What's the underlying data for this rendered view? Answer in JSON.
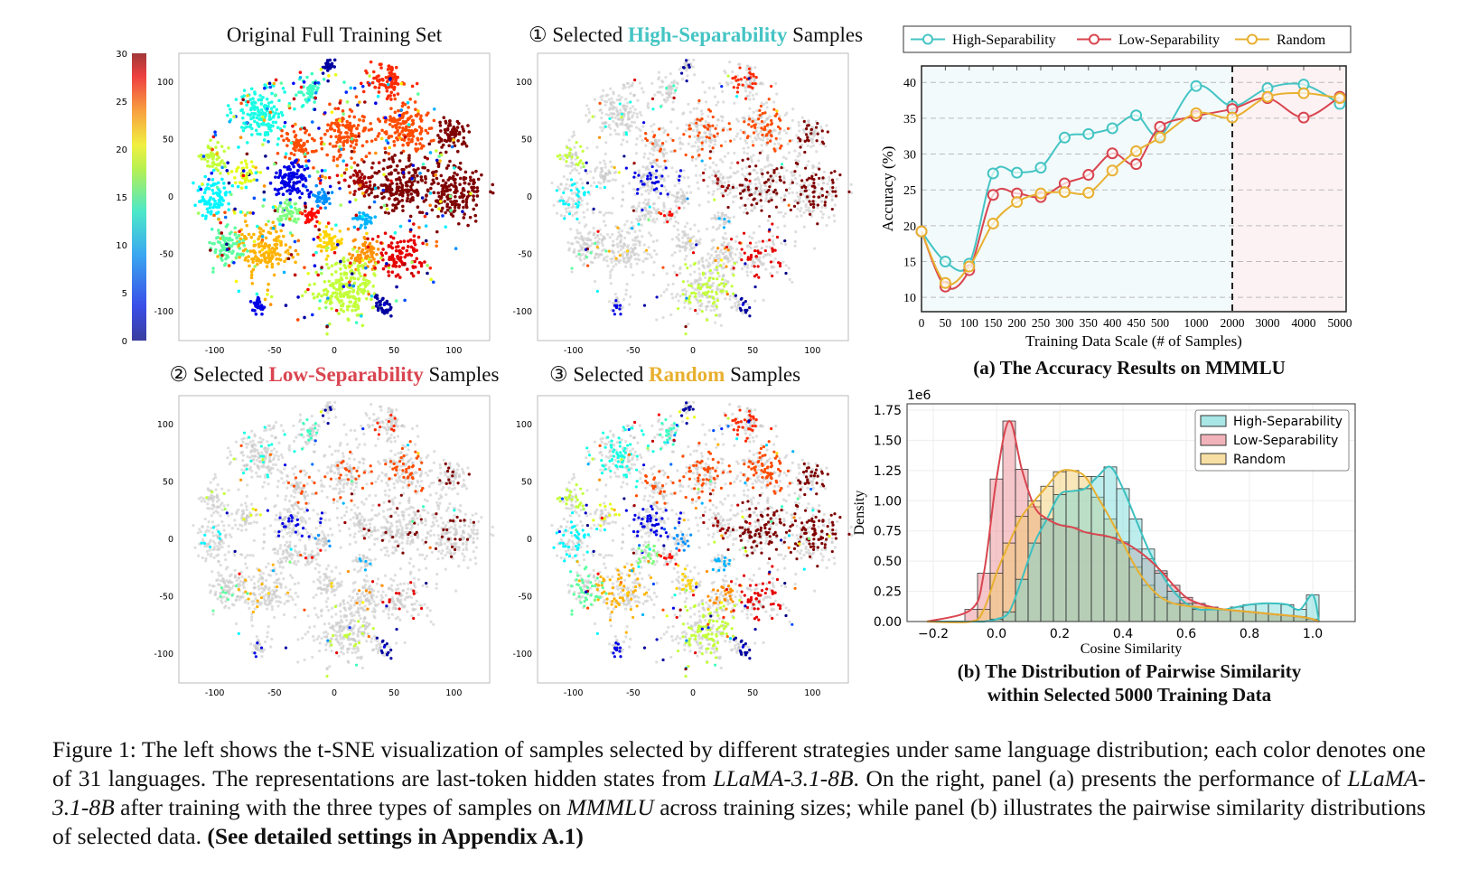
{
  "titles": {
    "original": "Original Full Training Set",
    "high_prefix": "① Selected ",
    "high_word": "High-Separability",
    "high_suffix": " Samples",
    "low_prefix": "② Selected ",
    "low_word": "Low-Separability",
    "low_suffix": " Samples",
    "random_prefix": "③ Selected ",
    "random_word": "Random",
    "random_suffix": " Samples"
  },
  "colors": {
    "high": "#45c4c4",
    "low": "#d9454f",
    "random": "#e8b030",
    "hist_high": "#6fd6d6",
    "hist_low": "#e8808a",
    "hist_random": "#f2c864"
  },
  "subcaptions": {
    "a": "(a) The Accuracy Results on MMMLU",
    "b_line1": "(b) The Distribution of Pairwise Similarity",
    "b_line2": "within Selected 5000 Training Data"
  },
  "caption": {
    "p1": "Figure 1: The left shows the t-SNE visualization of samples selected by different strategies under same language distribution; each color denotes one of 31 languages. The representations are last-token hidden states from ",
    "m1": "LLaMA-3.1-8B",
    "p2": ". On the right, panel (a) presents the performance of ",
    "m2": "LLaMA-3.1-8B",
    "p3": " after training with the three types of samples on ",
    "m3": "MMMLU",
    "p4": " across training sizes; while panel (b) illustrates the pairwise similarity distributions of selected data. ",
    "bold": "(See detailed settings in Appendix A.1)"
  },
  "chart_data": [
    {
      "type": "scatter",
      "id": "tsne",
      "panels": [
        "Original Full Training Set",
        "Selected High-Separability Samples",
        "Selected Low-Separability Samples",
        "Selected Random Samples"
      ],
      "colormap": "jet",
      "colorbar_ticks": [
        0,
        5,
        10,
        15,
        20,
        25,
        30
      ],
      "xticks": [
        -100,
        -50,
        0,
        50,
        100
      ],
      "yticks": [
        100,
        50,
        0,
        -50,
        -100
      ],
      "xlim": [
        -130,
        130
      ],
      "ylim": [
        -125,
        125
      ],
      "unselected_color": "#c8c8c8",
      "clusters": [
        {
          "x": -60,
          "y": 72,
          "r": 20,
          "lang": 12
        },
        {
          "x": -20,
          "y": 92,
          "r": 9,
          "lang": 13
        },
        {
          "x": -5,
          "y": 115,
          "r": 6,
          "lang": 1
        },
        {
          "x": 45,
          "y": 100,
          "r": 14,
          "lang": 25
        },
        {
          "x": 60,
          "y": 60,
          "r": 20,
          "lang": 24
        },
        {
          "x": 10,
          "y": 55,
          "r": 18,
          "lang": 24
        },
        {
          "x": -30,
          "y": 45,
          "r": 12,
          "lang": 24
        },
        {
          "x": 98,
          "y": 55,
          "r": 13,
          "lang": 30
        },
        {
          "x": 100,
          "y": 5,
          "r": 22,
          "lang": 30
        },
        {
          "x": 55,
          "y": 10,
          "r": 22,
          "lang": 30
        },
        {
          "x": 20,
          "y": 15,
          "r": 10,
          "lang": 29
        },
        {
          "x": -35,
          "y": 15,
          "r": 16,
          "lang": 3
        },
        {
          "x": -8,
          "y": 0,
          "r": 8,
          "lang": 8
        },
        {
          "x": -100,
          "y": 35,
          "r": 10,
          "lang": 17
        },
        {
          "x": -100,
          "y": 0,
          "r": 14,
          "lang": 11
        },
        {
          "x": -75,
          "y": 20,
          "r": 9,
          "lang": 18
        },
        {
          "x": -60,
          "y": -45,
          "r": 20,
          "lang": 21
        },
        {
          "x": -90,
          "y": -45,
          "r": 14,
          "lang": 14
        },
        {
          "x": -40,
          "y": -15,
          "r": 10,
          "lang": 15
        },
        {
          "x": -5,
          "y": -40,
          "r": 10,
          "lang": 20
        },
        {
          "x": 25,
          "y": -50,
          "r": 12,
          "lang": 22
        },
        {
          "x": 10,
          "y": -80,
          "r": 24,
          "lang": 17
        },
        {
          "x": 55,
          "y": -50,
          "r": 16,
          "lang": 27
        },
        {
          "x": 40,
          "y": -95,
          "r": 7,
          "lang": 1
        },
        {
          "x": -65,
          "y": -95,
          "r": 6,
          "lang": 3
        },
        {
          "x": 25,
          "y": -20,
          "r": 7,
          "lang": 9
        },
        {
          "x": -20,
          "y": -15,
          "r": 7,
          "lang": 26
        }
      ]
    },
    {
      "type": "line",
      "id": "accuracy",
      "title": "(a) The Accuracy Results on MMMLU",
      "xlabel": "Training Data Scale (# of Samples)",
      "ylabel": "Accuracy (%)",
      "categories": [
        "0",
        "50",
        "100",
        "150",
        "200",
        "250",
        "300",
        "350",
        "400",
        "450",
        "500",
        "1000",
        "2000",
        "3000",
        "4000",
        "5000"
      ],
      "yticks": [
        10,
        15,
        20,
        25,
        30,
        35,
        40
      ],
      "ylim": [
        8,
        42.3
      ],
      "grid": "horizontal dashed",
      "divider_at": "2000",
      "legend": "top",
      "series": [
        {
          "name": "High-Separability",
          "color": "#45c4c4",
          "values": [
            19.2,
            15.0,
            14.7,
            27.3,
            27.4,
            28.1,
            32.3,
            32.8,
            33.6,
            35.4,
            32.6,
            39.5,
            36.7,
            39.2,
            39.7,
            37.0
          ]
        },
        {
          "name": "Low-Separability",
          "color": "#d9454f",
          "values": [
            19.2,
            11.5,
            13.8,
            24.3,
            24.5,
            24.0,
            25.9,
            27.1,
            30.1,
            28.6,
            33.8,
            35.3,
            36.3,
            37.8,
            35.1,
            38.0
          ]
        },
        {
          "name": "Random",
          "color": "#e8b030",
          "values": [
            19.2,
            12.0,
            14.3,
            20.3,
            23.3,
            24.5,
            24.7,
            24.6,
            27.7,
            30.4,
            32.3,
            35.7,
            35.1,
            38.0,
            38.5,
            37.8
          ]
        }
      ]
    },
    {
      "type": "bar",
      "id": "similarity-histogram",
      "xlabel": "Cosine Similarity",
      "ylabel": "Density",
      "offset_label": "1e6",
      "xlim": [
        -0.28,
        1.06
      ],
      "ylim": [
        0,
        1.78
      ],
      "xticks": [
        -0.2,
        0.0,
        0.2,
        0.4,
        0.6,
        0.8,
        1.0
      ],
      "yticks": [
        0.0,
        0.25,
        0.5,
        0.75,
        1.0,
        1.25,
        1.5,
        1.75
      ],
      "bin_start": -0.1,
      "bin_width": 0.04,
      "legend": "top-right",
      "series": [
        {
          "name": "High-Separability",
          "color": "#6fd6d6",
          "line": "#3cc0c0",
          "values": [
            0,
            0,
            0.02,
            0.08,
            0.35,
            0.65,
            0.85,
            1.05,
            1.08,
            1.1,
            1.2,
            1.28,
            1.1,
            0.85,
            0.6,
            0.4,
            0.25,
            0.15,
            0.1,
            0.1,
            0.1,
            0.12,
            0.14,
            0.15,
            0.15,
            0.14,
            0.1,
            0.22
          ]
        },
        {
          "name": "Low-Separability",
          "color": "#e8808a",
          "line": "#d9454f",
          "values": [
            0.1,
            0.4,
            1.18,
            1.66,
            1.26,
            0.95,
            0.85,
            0.8,
            0.78,
            0.74,
            0.72,
            0.7,
            0.66,
            0.6,
            0.52,
            0.42,
            0.3,
            0.2,
            0.15,
            0.12,
            0.1,
            0.09,
            0.08,
            0.07,
            0.06,
            0.05,
            0.04,
            0.02
          ]
        },
        {
          "name": "Random",
          "color": "#f2c864",
          "line": "#e8b030",
          "values": [
            0,
            0.1,
            0.4,
            0.65,
            0.87,
            1.0,
            1.12,
            1.24,
            1.25,
            1.2,
            1.03,
            0.85,
            0.65,
            0.45,
            0.3,
            0.2,
            0.15,
            0.13,
            0.12,
            0.11,
            0.1,
            0.09,
            0.08,
            0.07,
            0.06,
            0.05,
            0.04,
            0.02
          ]
        }
      ]
    }
  ]
}
